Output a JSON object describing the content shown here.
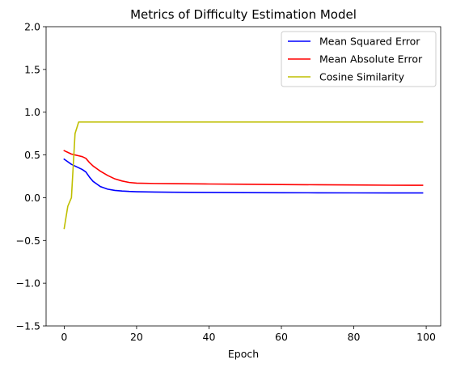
{
  "chart_data": {
    "type": "line",
    "title": "Metrics of Difficulty Estimation Model",
    "xlabel": "Epoch",
    "ylabel": "",
    "xlim": [
      -5,
      104
    ],
    "ylim": [
      -1.5,
      2.0
    ],
    "xticks": [
      0,
      20,
      40,
      60,
      80,
      100
    ],
    "yticks": [
      -1.5,
      -1.0,
      -0.5,
      0.0,
      0.5,
      1.0,
      1.5,
      2.0
    ],
    "xtick_labels": [
      "0",
      "20",
      "40",
      "60",
      "80",
      "100"
    ],
    "ytick_labels": [
      "−1.5",
      "−1.0",
      "−0.5",
      "0.0",
      "0.5",
      "1.0",
      "1.5",
      "2.0"
    ],
    "grid": false,
    "legend_position": "top-right",
    "series": [
      {
        "name": "Mean Squared Error",
        "color": "#0000ff",
        "x": [
          0,
          1,
          2,
          3,
          4,
          5,
          6,
          7,
          8,
          9,
          10,
          12,
          14,
          16,
          18,
          20,
          25,
          30,
          40,
          50,
          60,
          70,
          80,
          90,
          99
        ],
        "y": [
          0.45,
          0.42,
          0.39,
          0.37,
          0.35,
          0.33,
          0.3,
          0.24,
          0.19,
          0.16,
          0.13,
          0.1,
          0.085,
          0.078,
          0.073,
          0.07,
          0.066,
          0.064,
          0.061,
          0.059,
          0.058,
          0.057,
          0.056,
          0.055,
          0.055
        ]
      },
      {
        "name": "Mean Absolute Error",
        "color": "#ff0000",
        "x": [
          0,
          1,
          2,
          3,
          4,
          5,
          6,
          7,
          8,
          9,
          10,
          12,
          14,
          16,
          18,
          20,
          25,
          30,
          40,
          50,
          60,
          70,
          80,
          90,
          99
        ],
        "y": [
          0.55,
          0.53,
          0.51,
          0.5,
          0.49,
          0.48,
          0.46,
          0.41,
          0.37,
          0.34,
          0.31,
          0.26,
          0.22,
          0.195,
          0.178,
          0.17,
          0.166,
          0.164,
          0.16,
          0.157,
          0.154,
          0.151,
          0.149,
          0.146,
          0.145
        ]
      },
      {
        "name": "Cosine Similarity",
        "color": "#bfbf00",
        "x": [
          0,
          1,
          2,
          3,
          4,
          5,
          99
        ],
        "y": [
          -0.36,
          -0.1,
          0.0,
          0.75,
          0.885,
          0.885,
          0.885
        ]
      }
    ]
  }
}
